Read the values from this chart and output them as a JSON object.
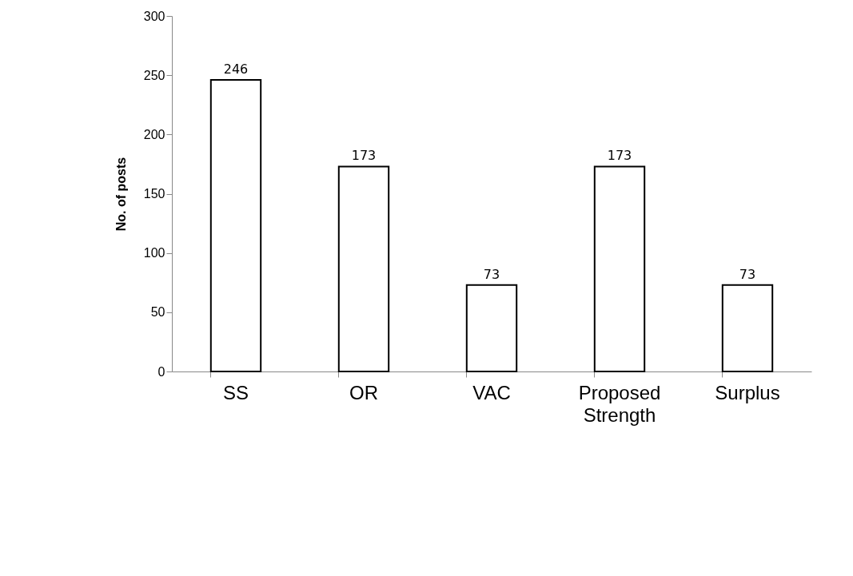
{
  "chart_data": {
    "type": "bar",
    "ylabel": "No. of posts",
    "categories": [
      "SS",
      "OR",
      "VAC",
      "Proposed Strength",
      "Surplus"
    ],
    "values": [
      246,
      173,
      73,
      173,
      73
    ],
    "color": "#ffffff",
    "ylim": [
      0,
      300
    ],
    "yticks": [
      0,
      50,
      100,
      150,
      200,
      250,
      300
    ],
    "data_labels": true
  }
}
